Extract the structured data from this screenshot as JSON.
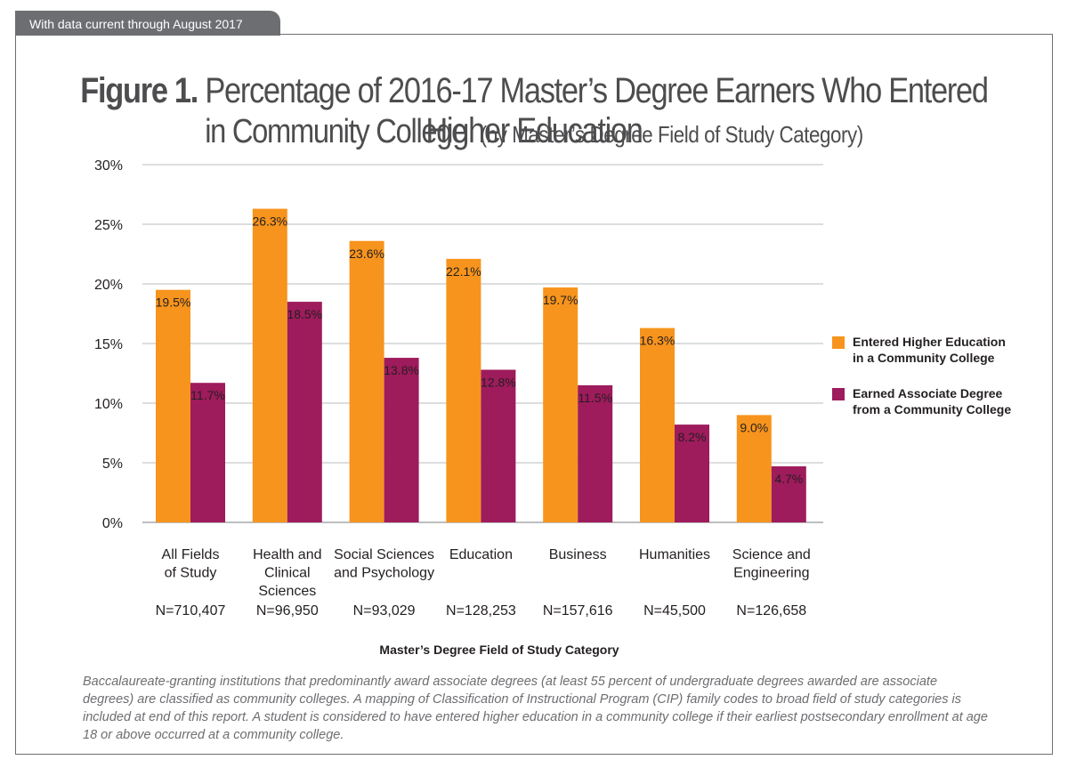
{
  "header": {
    "tab_text": "With data current through August 2017",
    "figure_label": "Figure 1.",
    "title_line1": "Percentage of 2016-17 Master’s Degree Earners Who Entered Higher Education",
    "title_line2": "in Community College",
    "title_sub": "(by Master’s Degree Field of Study Category)"
  },
  "chart_data": {
    "type": "bar",
    "title": "Percentage of 2016-17 Master’s Degree Earners Who Entered Higher Education in Community College (by Master’s Degree Field of Study Category)",
    "xlabel": "Master’s Degree Field of Study Category",
    "ylabel": "",
    "ylim": [
      0,
      30
    ],
    "yticks": [
      "0%",
      "5%",
      "10%",
      "15%",
      "20%",
      "25%",
      "30%"
    ],
    "grid": true,
    "legend_position": "right",
    "categories": [
      {
        "lines": [
          "All Fields",
          "of Study"
        ],
        "n": "N=710,407"
      },
      {
        "lines": [
          "Health and",
          "Clinical",
          "Sciences"
        ],
        "n": "N=96,950"
      },
      {
        "lines": [
          "Social Sciences",
          "and Psychology"
        ],
        "n": "N=93,029"
      },
      {
        "lines": [
          "Education"
        ],
        "n": "N=128,253"
      },
      {
        "lines": [
          "Business"
        ],
        "n": "N=157,616"
      },
      {
        "lines": [
          "Humanities"
        ],
        "n": "N=45,500"
      },
      {
        "lines": [
          "Science and",
          "Engineering"
        ],
        "n": "N=126,658"
      }
    ],
    "series": [
      {
        "name": "Entered Higher Education\nin a Community College",
        "color": "#f7941d",
        "values": [
          19.5,
          26.3,
          23.6,
          22.1,
          19.7,
          16.3,
          9.0
        ],
        "labels": [
          "19.5%",
          "26.3%",
          "23.6%",
          "22.1%",
          "19.7%",
          "16.3%",
          "9.0%"
        ]
      },
      {
        "name": "Earned Associate Degree\nfrom a Community College",
        "color": "#9e1b5c",
        "values": [
          11.7,
          18.5,
          13.8,
          12.8,
          11.5,
          8.2,
          4.7
        ],
        "labels": [
          "11.7%",
          "18.5%",
          "13.8%",
          "12.8%",
          "11.5%",
          "8.2%",
          "4.7%"
        ]
      }
    ]
  },
  "footnote": "Baccalaureate-granting institutions that predominantly award associate degrees (at least 55 percent of undergraduate degrees awarded are associate degrees) are classified as community  colleges. A mapping of Classification of Instructional Program (CIP) family codes to broad field of study categories is included at end of this report. A student is considered to have entered higher education in a community college if their earliest postsecondary enrollment at age 18 or above occurred at a community college."
}
